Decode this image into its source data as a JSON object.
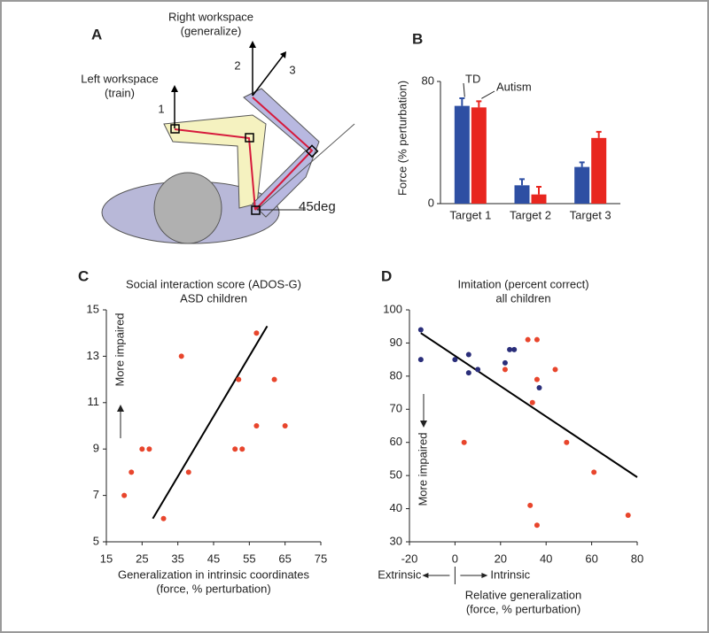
{
  "diagram": {
    "panel_label": "A",
    "right_workspace": [
      "Right workspace",
      "(generalize)"
    ],
    "left_workspace": [
      "Left workspace",
      "(train)"
    ],
    "target_labels": [
      "1",
      "2",
      "3"
    ],
    "angle_label": "45deg"
  },
  "chart_data": [
    {
      "type": "bar",
      "panel_label": "B",
      "ylabel": "Force (% perturbation)",
      "categories": [
        "Target 1",
        "Target 2",
        "Target 3"
      ],
      "series": [
        {
          "name": "TD",
          "color": "#2e4fa3",
          "values": [
            64,
            12,
            24
          ],
          "errors": [
            5,
            4,
            3
          ]
        },
        {
          "name": "Autism",
          "color": "#e8261f",
          "values": [
            63,
            6,
            43
          ],
          "errors": [
            4,
            5,
            4
          ]
        }
      ],
      "ylim": [
        0,
        80
      ],
      "yticks": [
        0,
        80
      ]
    },
    {
      "type": "scatter",
      "panel_label": "C",
      "title": "Social interaction score (ADOS-G)",
      "subtitle": "ASD children",
      "xlabel": [
        "Generalization in intrinsic coordinates",
        "(force, % perturbation)"
      ],
      "annotation": "More impaired",
      "series": [
        {
          "color": "#e8452c",
          "x": [
            20,
            22,
            25,
            27,
            31,
            36,
            38,
            51,
            52,
            53,
            57,
            57,
            62,
            65
          ],
          "values": [
            7,
            8,
            9,
            9,
            6,
            13,
            8,
            9,
            12,
            9,
            14,
            10,
            12,
            10
          ]
        }
      ],
      "fit_line": {
        "x": [
          28,
          60
        ],
        "y": [
          6,
          14.3
        ]
      },
      "xlim": [
        15,
        75
      ],
      "xticks": [
        15,
        25,
        35,
        45,
        55,
        65,
        75
      ],
      "ylim": [
        5,
        15
      ],
      "yticks": [
        5,
        7,
        9,
        11,
        13,
        15
      ]
    },
    {
      "type": "scatter",
      "panel_label": "D",
      "title": "Imitation (percent correct)",
      "subtitle": "all children",
      "xlabel": [
        "Relative generalization",
        "(force, % perturbation)"
      ],
      "annotation": "More impaired",
      "direction_labels": [
        "Extrinsic",
        "Intrinsic"
      ],
      "series": [
        {
          "color": "#2a2e7a",
          "x": [
            -15,
            -15,
            0,
            6,
            6,
            10,
            22,
            24,
            26,
            37
          ],
          "values": [
            94,
            85,
            85,
            86.5,
            81,
            82,
            84,
            88,
            88,
            76.5
          ]
        },
        {
          "color": "#e8452c",
          "x": [
            4,
            22,
            32,
            36,
            34,
            36,
            44,
            49,
            61,
            33,
            36,
            76
          ],
          "values": [
            60,
            82,
            91,
            91,
            72,
            79,
            82,
            60,
            51,
            41,
            35,
            38
          ]
        }
      ],
      "fit_line": {
        "x": [
          -15,
          80
        ],
        "y": [
          93,
          49.5
        ]
      },
      "xlim": [
        -20,
        80
      ],
      "xticks": [
        -20,
        0,
        20,
        40,
        60,
        80
      ],
      "ylim": [
        30,
        100
      ],
      "yticks": [
        30,
        40,
        50,
        60,
        70,
        80,
        90,
        100
      ]
    }
  ]
}
